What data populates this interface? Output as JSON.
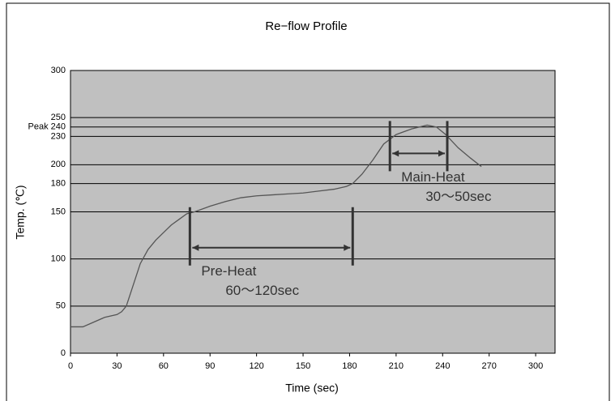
{
  "chart_data": {
    "type": "line",
    "title": "Re−flow Profile",
    "xlabel": "Time (sec)",
    "ylabel": "Temp. (℃)",
    "xlim": [
      0,
      312.5
    ],
    "xticks": [
      0,
      30,
      60,
      90,
      120,
      150,
      180,
      210,
      240,
      270,
      300
    ],
    "ylim": [
      0,
      300
    ],
    "yticks": [
      0,
      50,
      100,
      150,
      180,
      200,
      230,
      {
        "value": 240,
        "label": "Peak 240"
      },
      250,
      300
    ],
    "grid": true,
    "series": [
      {
        "color": "#555555",
        "x": [
          0,
          8,
          15,
          22,
          30,
          33,
          36,
          40,
          45,
          50,
          55,
          60,
          65,
          70,
          75,
          80,
          90,
          100,
          110,
          120,
          130,
          140,
          150,
          160,
          170,
          178,
          182,
          188,
          195,
          202,
          210,
          220,
          230,
          236,
          242,
          250,
          258,
          265
        ],
        "values": [
          28,
          28,
          33,
          38,
          41,
          44,
          50,
          70,
          95,
          110,
          120,
          128,
          136,
          142,
          148,
          150,
          156,
          161,
          165,
          167,
          168,
          169,
          170,
          172,
          174,
          177,
          180,
          190,
          205,
          222,
          232,
          238,
          242,
          240,
          232,
          218,
          207,
          198
        ]
      }
    ],
    "annotations": [
      {
        "lines": [
          "Pre-Heat",
          "60～120sec"
        ],
        "x": [
          77,
          182
        ],
        "y": 112
      },
      {
        "lines": [
          "Main-Heat",
          "30～50sec"
        ],
        "x": [
          206,
          243
        ],
        "y": 212
      }
    ]
  }
}
